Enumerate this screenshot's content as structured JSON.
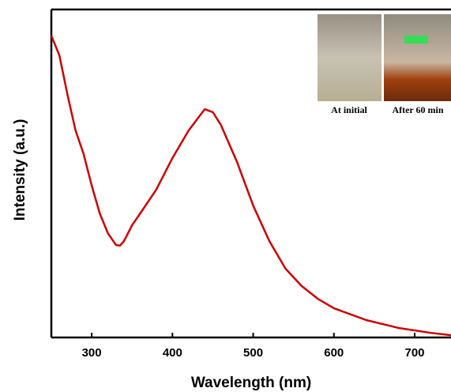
{
  "chart_data": {
    "type": "line",
    "x_label": "Wavelength (nm)",
    "y_label": "Intensity (a.u.)",
    "xlim": [
      250,
      745
    ],
    "xticks": [
      300,
      400,
      500,
      600,
      700
    ],
    "ylim": [
      0,
      100
    ],
    "x": [
      250,
      260,
      270,
      280,
      290,
      300,
      310,
      320,
      330,
      335,
      340,
      350,
      360,
      380,
      400,
      420,
      440,
      450,
      460,
      480,
      500,
      520,
      540,
      560,
      580,
      600,
      640,
      680,
      720,
      745
    ],
    "series": [
      {
        "color": "#cc0000",
        "values": [
          92.0,
          86.0,
          74.0,
          63.1,
          55.9,
          46.3,
          37.8,
          31.8,
          28.2,
          28.0,
          29.4,
          34.2,
          37.8,
          45.1,
          54.7,
          63.1,
          69.6,
          68.7,
          64.8,
          53.5,
          40.2,
          29.4,
          21.0,
          15.7,
          11.8,
          8.9,
          5.3,
          2.9,
          1.4,
          0.7
        ]
      }
    ],
    "inset_labels": [
      "At initial",
      "After 60 min"
    ]
  }
}
